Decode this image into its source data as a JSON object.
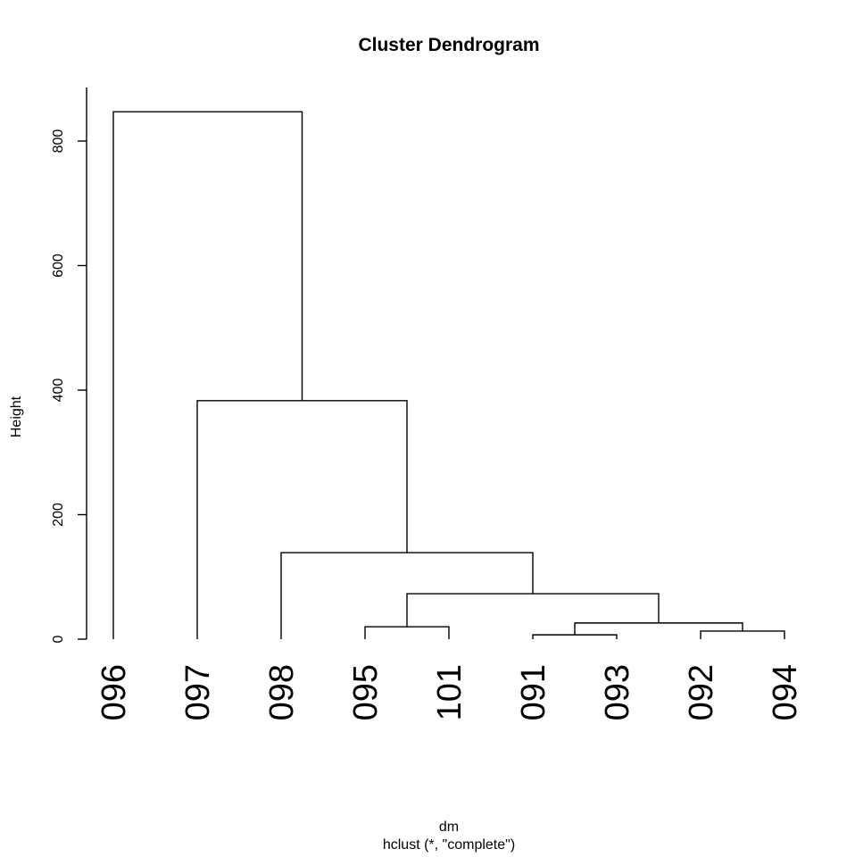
{
  "chart_data": {
    "type": "dendrogram",
    "title": "Cluster Dendrogram",
    "ylabel": "Height",
    "xlabel": "dm",
    "subtitle": "hclust (*, \"complete\")",
    "ylim": [
      0,
      880
    ],
    "yticks": [
      0,
      200,
      400,
      600,
      800
    ],
    "ytick_labels": [
      "0",
      "200",
      "400",
      "600",
      "800"
    ],
    "leaves": [
      "096",
      "097",
      "098",
      "095",
      "101",
      "091",
      "093",
      "092",
      "094"
    ],
    "merges": [
      {
        "left": "leaf:091",
        "right": "leaf:093",
        "height": 7
      },
      {
        "left": "leaf:092",
        "right": "leaf:094",
        "height": 13
      },
      {
        "left": "leaf:095",
        "right": "leaf:101",
        "height": 20
      },
      {
        "left": "node:0",
        "right": "node:1",
        "height": 26
      },
      {
        "left": "node:2",
        "right": "node:3",
        "height": 73
      },
      {
        "left": "leaf:098",
        "right": "node:4",
        "height": 139
      },
      {
        "left": "leaf:097",
        "right": "node:5",
        "height": 383
      },
      {
        "left": "leaf:096",
        "right": "node:6",
        "height": 847
      }
    ]
  }
}
